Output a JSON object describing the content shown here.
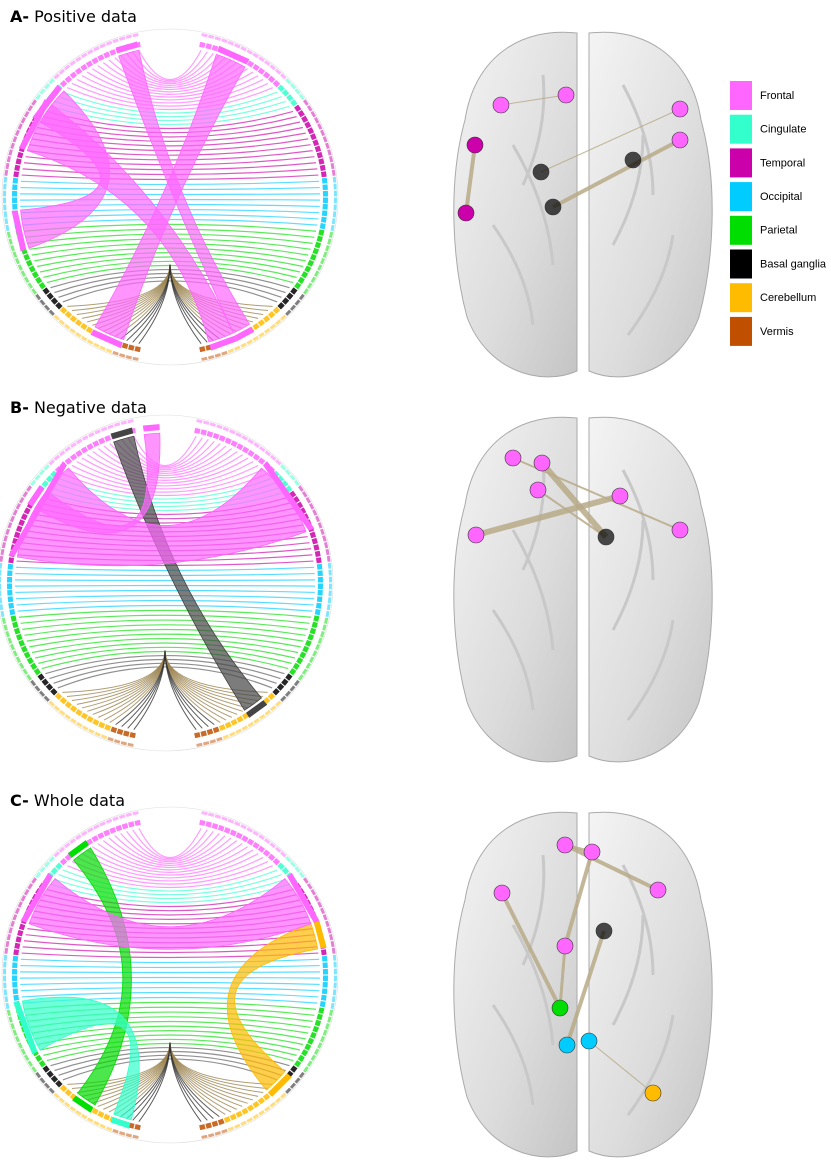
{
  "panels": [
    {
      "label": "A-",
      "title": "Positive data"
    },
    {
      "label": "B-",
      "title": "Negative data"
    },
    {
      "label": "C-",
      "title": "Whole data"
    }
  ],
  "legend": {
    "items": [
      {
        "name": "Frontal",
        "color": "#ff66ff"
      },
      {
        "name": "Cingulate",
        "color": "#33ffcc"
      },
      {
        "name": "Temporal",
        "color": "#cc00aa"
      },
      {
        "name": "Occipital",
        "color": "#00ccff"
      },
      {
        "name": "Parietal",
        "color": "#00dd00"
      },
      {
        "name": "Basal ganglia",
        "color": "#000000"
      },
      {
        "name": "Cerebellum",
        "color": "#ffbb00"
      },
      {
        "name": "Vermis",
        "color": "#c05000"
      }
    ]
  }
}
